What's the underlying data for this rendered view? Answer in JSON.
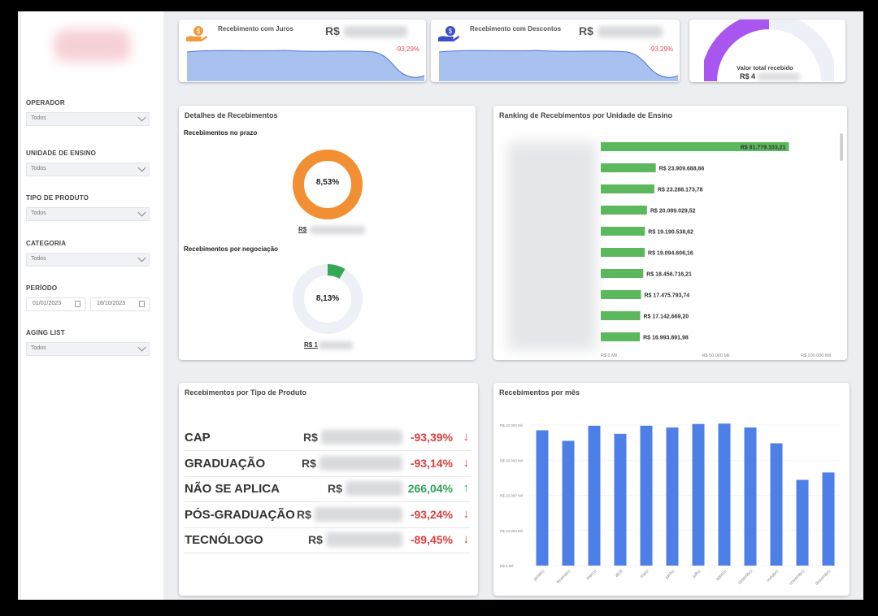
{
  "sidebar": {
    "filters": [
      {
        "label": "OPERADOR",
        "value": "Todos"
      },
      {
        "label": "UNIDADE DE ENSINO",
        "value": "Todos"
      },
      {
        "label": "TIPO DE PRODUTO",
        "value": "Todos"
      },
      {
        "label": "CATEGORIA",
        "value": "Todos"
      }
    ],
    "periodo": {
      "label": "PERÍODO",
      "start": "01/01/2023",
      "end": "16/10/2023"
    },
    "aging": {
      "label": "AGING LIST",
      "value": "Todos"
    }
  },
  "kpis": {
    "juros": {
      "title": "Recebimento com Juros",
      "currency": "R$",
      "trend": "-93,29%"
    },
    "descontos": {
      "title": "Recebimento com Descontos",
      "currency": "R$",
      "trend": "-93,29%"
    },
    "total": {
      "title": "Valor total recebido",
      "currency": "R$ 4"
    }
  },
  "detalhes": {
    "title": "Detalhes de Recebimentos",
    "prazo": {
      "label": "Recebimentos no prazo",
      "value": "8,53%",
      "currency": "R$"
    },
    "negociacao": {
      "label": "Recebimentos por negociação",
      "value": "8,13%",
      "currency": "R$ 1"
    }
  },
  "ranking": {
    "title": "Ranking de Recebimentos por Unidade de Ensino",
    "values": [
      81779103.21,
      23909688.66,
      23288173.78,
      20089029.52,
      19190538.62,
      19094606.16,
      18456716.21,
      17475793.74,
      17142669.2,
      16993891.98
    ],
    "labels": [
      "R$ 81.779.103,21",
      "R$ 23.909.688,66",
      "R$ 23.288.173,78",
      "R$ 20.089.029,52",
      "R$ 19.190.538,62",
      "R$ 19.094.606,16",
      "R$ 18.456.716,21",
      "R$ 17.475.793,74",
      "R$ 17.142.669,20",
      "R$ 16.993.891,98"
    ],
    "axis_ticks": [
      {
        "value": 0,
        "label": "R$ 0 Mil"
      },
      {
        "value": 50000000,
        "label": "R$ 50.000 Mil"
      },
      {
        "value": 100000000,
        "label": "R$ 100.000 Mil"
      }
    ],
    "bar_color": "#5cb85c"
  },
  "produtos": {
    "title": "Recebimentos por Tipo de Produto",
    "rows": [
      {
        "name": "CAP",
        "currency": "R$",
        "pct": "-93,39%",
        "dir": "down"
      },
      {
        "name": "GRADUAÇÃO",
        "currency": "R$",
        "pct": "-93,14%",
        "dir": "down"
      },
      {
        "name": "NÃO SE APLICA",
        "currency": "R$",
        "pct": "266,04%",
        "dir": "up"
      },
      {
        "name": "PÓS-GRADUAÇÃO",
        "currency": "R$",
        "pct": "-93,24%",
        "dir": "down"
      },
      {
        "name": "TECNÓLOGO",
        "currency": "R$",
        "pct": "-89,45%",
        "dir": "down"
      }
    ]
  },
  "mensal": {
    "title": "Recebimentos por mês",
    "chart_data": {
      "type": "bar",
      "categories": [
        "janeiro",
        "fevereiro",
        "março",
        "abril",
        "maio",
        "junho",
        "julho",
        "agosto",
        "setembro",
        "outubro",
        "novembro",
        "dezembro"
      ],
      "values": [
        38500000,
        35500000,
        39800000,
        37500000,
        39800000,
        39300000,
        40300000,
        40400000,
        39300000,
        34800000,
        24400000,
        26500000
      ],
      "yticks": [
        {
          "value": 0,
          "label": "R$ 0 Mil"
        },
        {
          "value": 10000000,
          "label": "R$ 10.000 Mil"
        },
        {
          "value": 20000000,
          "label": "R$ 20.000 Mil"
        },
        {
          "value": 30000000,
          "label": "R$ 30.000 Mil"
        },
        {
          "value": 40000000,
          "label": "R$ 40.000 Mil"
        }
      ],
      "ylim": [
        0,
        40000000
      ],
      "color": "#4e7fe6"
    }
  }
}
